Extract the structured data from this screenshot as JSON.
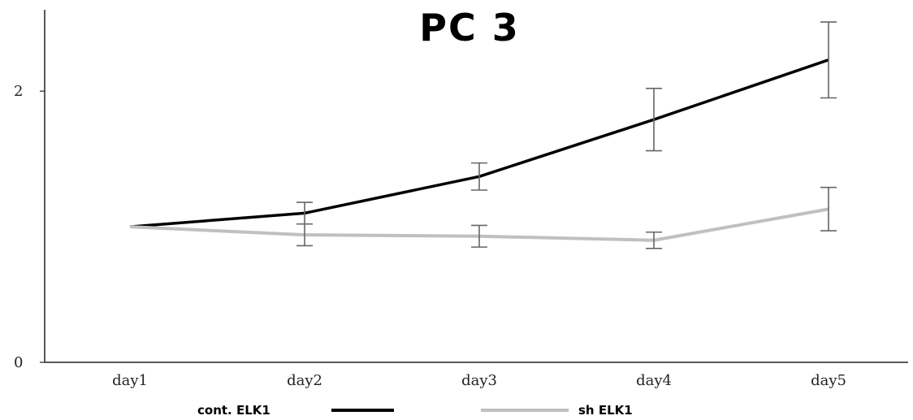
{
  "chart_data": {
    "type": "line",
    "title": "PC 3",
    "xlabel": "",
    "ylabel": "",
    "categories": [
      "day1",
      "day2",
      "day3",
      "day4",
      "day5"
    ],
    "ylim": [
      0,
      2.6
    ],
    "yticks": [
      0,
      2
    ],
    "grid": false,
    "legend": "bottom",
    "series": [
      {
        "name": "cont. ELK1",
        "color": "#000000",
        "values": [
          1.0,
          1.1,
          1.37,
          1.79,
          2.23
        ],
        "error": [
          0,
          0.08,
          0.1,
          0.23,
          0.28
        ]
      },
      {
        "name": "sh ELK1",
        "color": "#c0c0c0",
        "values": [
          1.0,
          0.94,
          0.93,
          0.9,
          1.13
        ],
        "error": [
          0,
          0.08,
          0.08,
          0.06,
          0.16
        ]
      }
    ]
  }
}
